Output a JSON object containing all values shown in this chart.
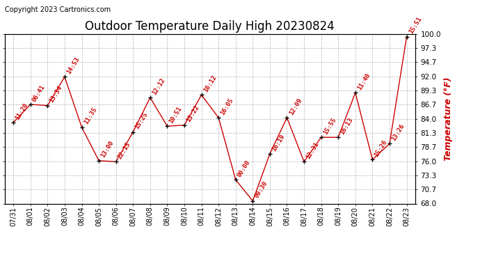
{
  "title": "Outdoor Temperature Daily High 20230824",
  "copyright": "Copyright 2023 Cartronics.com",
  "ylabel": "Temperature (°F)",
  "ylabel_color": "#cc0000",
  "background_color": "#ffffff",
  "grid_color": "#aaaaaa",
  "line_color": "#cc0000",
  "marker_color": "#000000",
  "annotation_color": "#cc0000",
  "dates": [
    "07/31",
    "08/01",
    "08/02",
    "08/03",
    "08/04",
    "08/05",
    "08/06",
    "08/07",
    "08/08",
    "08/09",
    "08/10",
    "08/11",
    "08/12",
    "08/13",
    "08/14",
    "08/15",
    "08/16",
    "08/17",
    "08/18",
    "08/19",
    "08/20",
    "08/21",
    "08/22",
    "08/23"
  ],
  "values": [
    83.3,
    86.7,
    86.5,
    91.9,
    82.4,
    76.1,
    75.9,
    81.5,
    88.0,
    82.6,
    82.8,
    88.5,
    84.2,
    72.5,
    68.5,
    77.4,
    84.2,
    75.9,
    80.5,
    80.5,
    88.9,
    76.3,
    79.3,
    99.5
  ],
  "annotations": [
    "11:20",
    "06:41",
    "13:34",
    "14:53",
    "11:35",
    "13:00",
    "22:15",
    "15:25",
    "12:12",
    "10:51",
    "13:22",
    "16:12",
    "16:05",
    "00:00",
    "09:30",
    "16:19",
    "12:09",
    "12:31",
    "15:55",
    "16:13",
    "11:40",
    "15:26",
    "13:26",
    "15:51"
  ],
  "ylim_min": 68.0,
  "ylim_max": 100.0,
  "yticks": [
    68.0,
    70.7,
    73.3,
    76.0,
    78.7,
    81.3,
    84.0,
    86.7,
    89.3,
    92.0,
    94.7,
    97.3,
    100.0
  ]
}
